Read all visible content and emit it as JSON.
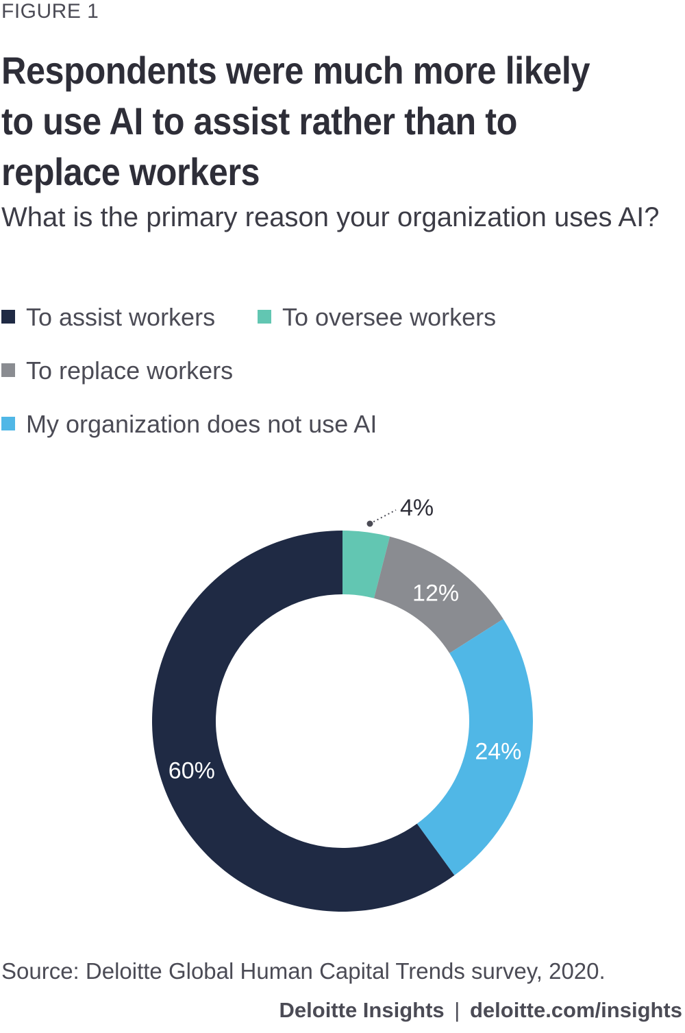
{
  "figure_label": "FIGURE 1",
  "title": "Respondents were much more likely to use AI to assist rather than to replace workers",
  "subtitle": "What is the primary reason your organization uses AI?",
  "source": "Source: Deloitte Global Human Capital Trends survey, 2020.",
  "footer": {
    "brand": "Deloitte Insights",
    "separator": "|",
    "url": "deloitte.com/insights"
  },
  "colors": {
    "assist": "#1f2a44",
    "oversee": "#62c6b2",
    "replace": "#8a8c91",
    "no_ai": "#50b7e6"
  },
  "chart_data": {
    "type": "pie",
    "variant": "donut",
    "start": "top, clockwise",
    "categories": [
      "To oversee workers",
      "To replace workers",
      "My organization does not use AI",
      "To assist workers"
    ],
    "values": [
      4,
      12,
      24,
      60
    ],
    "labels": [
      "4%",
      "12%",
      "24%",
      "60%"
    ],
    "legend": [
      {
        "label": "To assist workers",
        "color": "#1f2a44"
      },
      {
        "label": "To oversee workers",
        "color": "#62c6b2"
      },
      {
        "label": "To replace workers",
        "color": "#8a8c91"
      },
      {
        "label": "My organization does not use AI",
        "color": "#50b7e6"
      }
    ],
    "legend_placement": "top",
    "label_colors": [
      "#2e2e38",
      "#ffffff",
      "#ffffff",
      "#ffffff"
    ],
    "slice_colors": [
      "#62c6b2",
      "#8a8c91",
      "#50b7e6",
      "#1f2a44"
    ]
  }
}
